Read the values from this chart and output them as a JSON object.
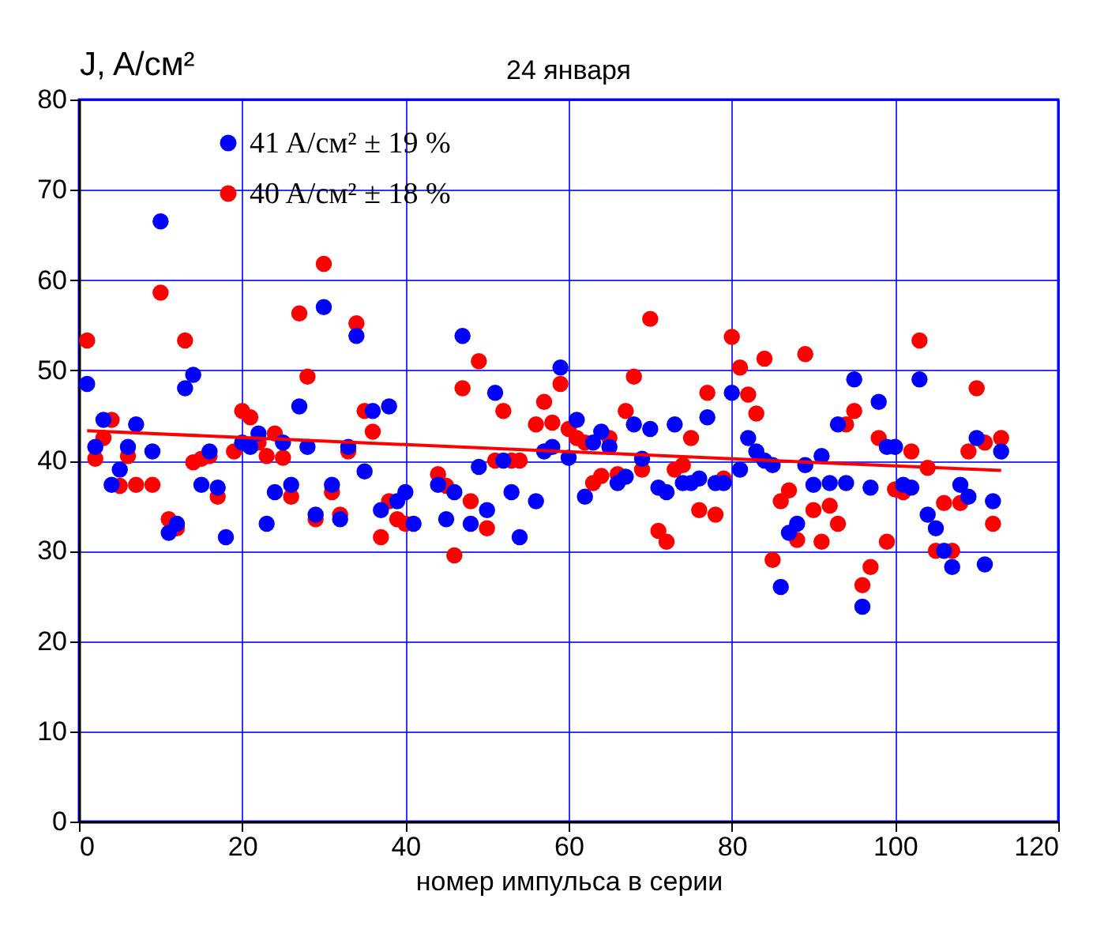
{
  "chart_data": {
    "type": "scatter",
    "title": "24 января",
    "xlabel": "номер импульса в серии",
    "ylabel": "J, A/см²",
    "xlim": [
      0,
      120
    ],
    "xticks": [
      0,
      20,
      40,
      60,
      80,
      100,
      120
    ],
    "ylim": [
      0,
      80
    ],
    "yticks": [
      0,
      10,
      20,
      30,
      40,
      50,
      60,
      70,
      80
    ],
    "grid": true,
    "legend": "top left",
    "marker": "circle",
    "series": [
      {
        "name": "41 A/см² ± 19 %",
        "color": "#0000ff",
        "x": [
          1,
          2,
          3,
          4,
          5,
          6,
          7,
          9,
          10,
          11,
          12,
          13,
          14,
          15,
          16,
          17,
          18,
          20,
          21,
          22,
          23,
          24,
          25,
          26,
          27,
          28,
          29,
          30,
          31,
          32,
          33,
          34,
          35,
          36,
          37,
          38,
          39,
          40,
          41,
          44,
          45,
          46,
          47,
          48,
          49,
          50,
          51,
          52,
          53,
          54,
          56,
          57,
          58,
          59,
          60,
          61,
          62,
          63,
          64,
          65,
          66,
          67,
          68,
          69,
          70,
          71,
          72,
          73,
          74,
          75,
          76,
          77,
          78,
          79,
          80,
          81,
          82,
          83,
          84,
          85,
          86,
          87,
          88,
          89,
          90,
          91,
          92,
          93,
          94,
          95,
          96,
          97,
          98,
          99,
          100,
          101,
          102,
          103,
          104,
          105,
          106,
          107,
          108,
          109,
          110,
          111,
          112,
          113
        ],
        "values": [
          48.5,
          41.5,
          44.5,
          37.3,
          39,
          41.5,
          44,
          41,
          66.5,
          32,
          33,
          48,
          49.5,
          37.3,
          41,
          37,
          31.5,
          42,
          41.5,
          43,
          33,
          36.5,
          42,
          37.3,
          46,
          41.5,
          34,
          57,
          37.3,
          33.5,
          41.5,
          53.8,
          38.8,
          45.5,
          34.5,
          46,
          35.5,
          36.5,
          33,
          37.3,
          33.5,
          36.5,
          53.8,
          33,
          39.3,
          34.5,
          47.5,
          40,
          36.5,
          31.5,
          35.5,
          41,
          41.5,
          50.3,
          40.3,
          44.5,
          36,
          42,
          43.2,
          41.5,
          37.5,
          38.2,
          44,
          40.2,
          43.5,
          37,
          36.5,
          44,
          37.5,
          37.5,
          38,
          44.8,
          37.5,
          37.5,
          47.5,
          39,
          42.5,
          41,
          40,
          39.5,
          26,
          32,
          33,
          39.5,
          37.3,
          40.5,
          37.5,
          44,
          37.5,
          49,
          23.8,
          37,
          46.5,
          41.5,
          41.5,
          37.3,
          37,
          49,
          34,
          32.5,
          30,
          28.2,
          37.3,
          36,
          42.5,
          28.5,
          35.5,
          41
        ]
      },
      {
        "name": "40 A/см² ± 18 %",
        "color": "#ff0000",
        "x": [
          1,
          2,
          3,
          4,
          5,
          6,
          7,
          9,
          10,
          11,
          12,
          13,
          14,
          15,
          16,
          17,
          19,
          20,
          21,
          22,
          23,
          24,
          25,
          26,
          27,
          28,
          29,
          30,
          31,
          32,
          33,
          34,
          35,
          36,
          37,
          38,
          39,
          40,
          44,
          45,
          46,
          47,
          48,
          49,
          50,
          51,
          52,
          53,
          54,
          56,
          57,
          58,
          59,
          60,
          61,
          62,
          63,
          64,
          65,
          66,
          67,
          68,
          69,
          70,
          71,
          72,
          73,
          74,
          75,
          76,
          77,
          78,
          79,
          80,
          81,
          82,
          83,
          84,
          85,
          86,
          87,
          88,
          89,
          90,
          91,
          92,
          93,
          94,
          95,
          96,
          97,
          98,
          99,
          100,
          101,
          102,
          103,
          104,
          105,
          106,
          107,
          108,
          109,
          110,
          111,
          112,
          113
        ],
        "values": [
          53.3,
          40.2,
          42.5,
          44.5,
          37.2,
          40.5,
          37.3,
          37.3,
          58.6,
          33.5,
          32.5,
          53.3,
          39.8,
          40.2,
          40.5,
          36,
          41,
          45.5,
          44.8,
          42,
          40.5,
          43,
          40.3,
          36,
          56.3,
          49.3,
          33.5,
          61.8,
          36.5,
          34,
          41,
          55.2,
          45.5,
          43.2,
          31.5,
          35.5,
          33.5,
          33,
          38.5,
          37.2,
          29.5,
          48,
          35.5,
          51,
          32.5,
          40,
          45.5,
          40,
          40,
          44,
          46.5,
          44.2,
          48.5,
          43.5,
          42.5,
          42,
          37.5,
          38.3,
          42.5,
          38.5,
          45.5,
          49.3,
          39,
          55.7,
          32.2,
          31,
          39,
          39.5,
          42.5,
          34.5,
          47.5,
          34,
          38,
          53.7,
          50.3,
          47.3,
          45.2,
          51.3,
          29,
          35.5,
          36.7,
          31.2,
          51.8,
          34.5,
          31,
          35,
          33,
          44,
          45.5,
          26.2,
          28.2,
          42.5,
          31,
          36.8,
          36.5,
          41,
          53.3,
          39.2,
          30,
          35.3,
          30,
          35.3,
          41,
          48,
          42,
          33,
          42.5
        ]
      },
      {
        "type": "line",
        "marker": "none",
        "color": "#ff0000",
        "x": [
          1,
          113
        ],
        "values": [
          43.3,
          38.9
        ]
      }
    ]
  }
}
